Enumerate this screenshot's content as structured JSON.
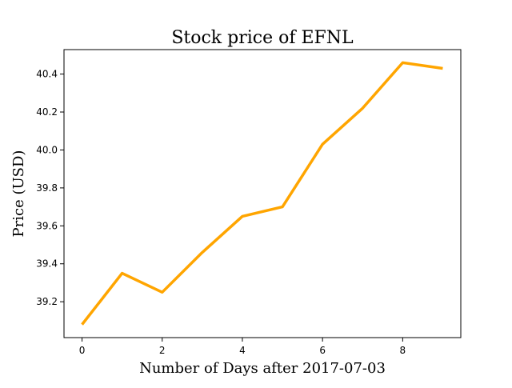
{
  "chart_data": {
    "type": "line",
    "title": "Stock price of EFNL",
    "xlabel": "Number of Days after 2017-07-03",
    "ylabel": "Price (USD)",
    "x": [
      0,
      1,
      2,
      3,
      4,
      5,
      6,
      7,
      8,
      9
    ],
    "series": [
      {
        "values": [
          39.08,
          39.35,
          39.25,
          39.46,
          39.65,
          39.7,
          40.03,
          40.22,
          40.46,
          40.43
        ],
        "color": "#ffa500"
      }
    ],
    "xlim": [
      -0.45,
      9.45
    ],
    "ylim": [
      39.011,
      40.529
    ],
    "x_ticks": [
      "0",
      "2",
      "4",
      "6",
      "8"
    ],
    "y_ticks": [
      "39.2",
      "39.4",
      "39.6",
      "39.8",
      "40.0",
      "40.2",
      "40.4"
    ],
    "grid": false,
    "legend": "none"
  }
}
